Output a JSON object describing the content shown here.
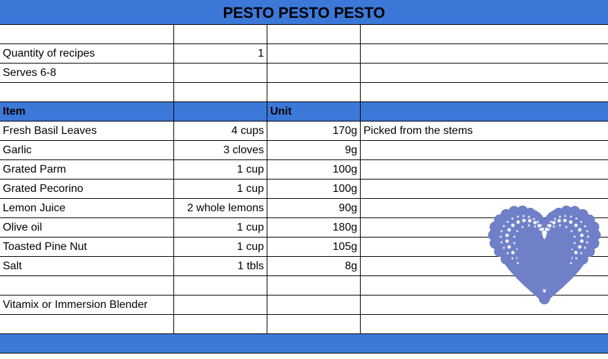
{
  "title": "PESTO PESTO PESTO",
  "rows": [
    [
      "",
      "",
      "",
      ""
    ],
    [
      "Quantity of recipes",
      "1",
      "",
      ""
    ],
    [
      "Serves 6-8",
      "",
      "",
      ""
    ],
    [
      "",
      "",
      "",
      ""
    ],
    [
      "Item",
      "",
      "Unit",
      ""
    ],
    [
      "Fresh Basil Leaves",
      "4 cups",
      "170g",
      "Picked from the stems"
    ],
    [
      "Garlic",
      "3 cloves",
      "9g",
      ""
    ],
    [
      "Grated Parm",
      "1 cup",
      "100g",
      ""
    ],
    [
      "Grated Pecorino",
      "1 cup",
      "100g",
      ""
    ],
    [
      "Lemon Juice",
      "2 whole lemons",
      "90g",
      ""
    ],
    [
      "Olive oil",
      "1 cup",
      "180g",
      ""
    ],
    [
      "Toasted Pine Nut",
      "1 cup",
      "105g",
      ""
    ],
    [
      "Salt",
      "1 tbls",
      "8g",
      ""
    ],
    [
      "",
      "",
      "",
      ""
    ],
    [
      "Vitamix or Immersion Blender",
      "",
      "",
      ""
    ],
    [
      "",
      "",
      "",
      ""
    ]
  ],
  "header_row_index": 4,
  "colors": {
    "accent": "#3c78d8",
    "doily": "#6f7fc8",
    "doily_light": "#a6b0e0"
  },
  "decoration": "heart-doily-image"
}
